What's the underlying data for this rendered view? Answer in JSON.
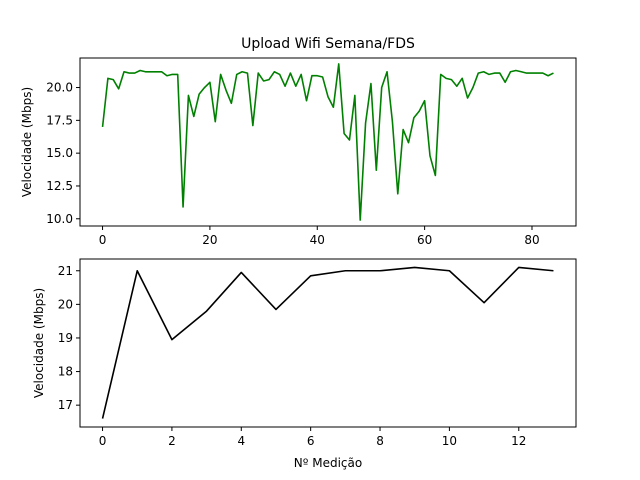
{
  "chart_data": [
    {
      "type": "line",
      "title": "Upload Wifi Semana/FDS",
      "xlabel": "",
      "ylabel": "Velocidade (Mbps)",
      "xlim": [
        -4.2,
        88.2
      ],
      "ylim": [
        9.45,
        22.25
      ],
      "xticks": [
        0,
        20,
        40,
        60,
        80
      ],
      "yticks": [
        10.0,
        12.5,
        15.0,
        17.5,
        20.0
      ],
      "ytick_labels": [
        "10.0",
        "12.5",
        "15.0",
        "17.5",
        "20.0"
      ],
      "grid": false,
      "color": "#008000",
      "x": [
        0,
        1,
        2,
        3,
        4,
        5,
        6,
        7,
        8,
        9,
        10,
        11,
        12,
        13,
        14,
        15,
        16,
        17,
        18,
        19,
        20,
        21,
        22,
        23,
        24,
        25,
        26,
        27,
        28,
        29,
        30,
        31,
        32,
        33,
        34,
        35,
        36,
        37,
        38,
        39,
        40,
        41,
        42,
        43,
        44,
        45,
        46,
        47,
        48,
        49,
        50,
        51,
        52,
        53,
        54,
        55,
        56,
        57,
        58,
        59,
        60,
        61,
        62,
        63,
        64,
        65,
        66,
        67,
        68,
        69,
        70,
        71,
        72,
        73,
        74,
        75,
        76,
        77,
        78,
        79,
        80,
        81,
        82,
        83,
        84
      ],
      "values": [
        17.0,
        20.7,
        20.6,
        19.9,
        21.2,
        21.1,
        21.1,
        21.3,
        21.2,
        21.2,
        21.2,
        21.2,
        20.9,
        21.0,
        21.0,
        10.9,
        19.4,
        17.8,
        19.5,
        20.0,
        20.4,
        17.4,
        21.0,
        19.8,
        18.8,
        21.0,
        21.2,
        21.1,
        17.1,
        21.1,
        20.5,
        20.6,
        21.2,
        21.0,
        20.1,
        21.1,
        20.1,
        21.0,
        19.0,
        20.9,
        20.9,
        20.8,
        19.3,
        18.5,
        21.8,
        16.5,
        16.0,
        19.4,
        9.9,
        17.3,
        20.3,
        13.7,
        20.0,
        21.2,
        17.4,
        11.9,
        16.8,
        15.8,
        17.7,
        18.2,
        19.0,
        14.8,
        13.3,
        21.0,
        20.7,
        20.6,
        20.1,
        20.7,
        19.2,
        20.0,
        21.1,
        21.2,
        21.0,
        21.1,
        21.1,
        20.4,
        21.2,
        21.3,
        21.2,
        21.1,
        21.1,
        21.1,
        21.1,
        20.9,
        21.1
      ]
    },
    {
      "type": "line",
      "title": "",
      "xlabel": "Nº Medição",
      "ylabel": "Velocidade (Mbps)",
      "xlim": [
        -0.65,
        13.65
      ],
      "ylim": [
        16.35,
        21.35
      ],
      "xticks": [
        0,
        2,
        4,
        6,
        8,
        10,
        12
      ],
      "yticks": [
        17,
        18,
        19,
        20,
        21
      ],
      "ytick_labels": [
        "17",
        "18",
        "19",
        "20",
        "21"
      ],
      "grid": false,
      "color": "#000000",
      "x": [
        0,
        1,
        2,
        3,
        4,
        5,
        6,
        7,
        8,
        9,
        10,
        11,
        12,
        13
      ],
      "values": [
        16.6,
        21.0,
        18.95,
        19.8,
        20.95,
        19.85,
        20.85,
        21.0,
        21.0,
        21.1,
        21.0,
        20.05,
        21.1,
        21.0
      ]
    }
  ]
}
